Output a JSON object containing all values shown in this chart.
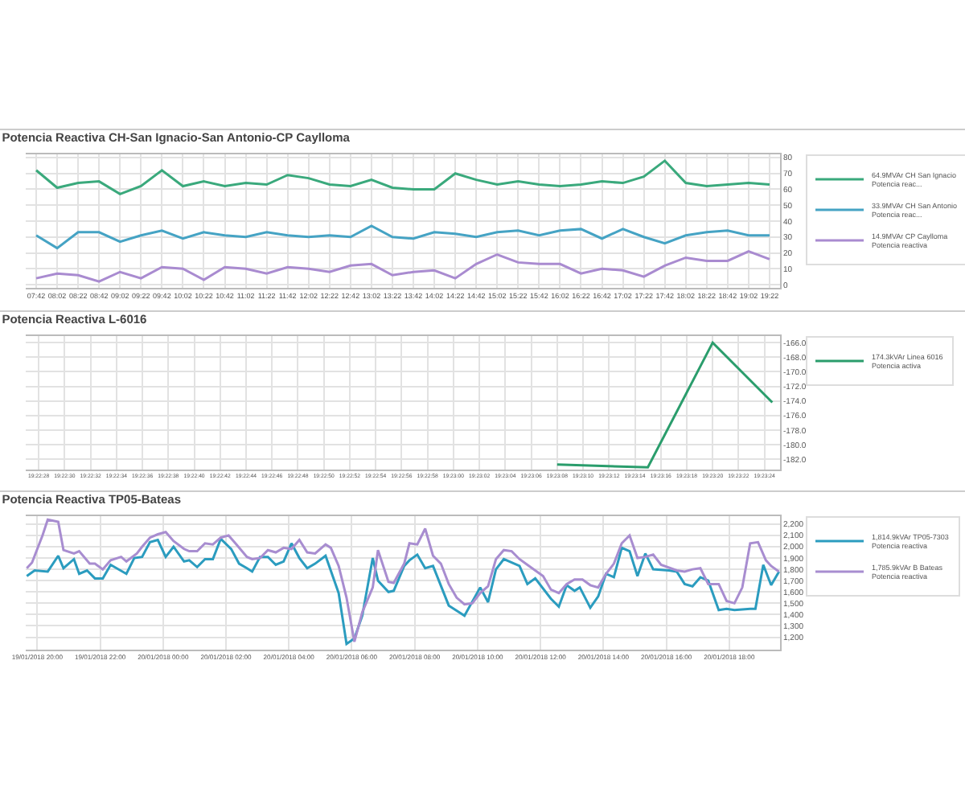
{
  "chart_data": [
    {
      "type": "line",
      "title": "Potencia Reactiva CH-San Ignacio-San Antonio-CP Caylloma",
      "categories": [
        "07:42",
        "08:02",
        "08:22",
        "08:42",
        "09:02",
        "09:22",
        "09:42",
        "10:02",
        "10:22",
        "10:42",
        "11:02",
        "11:22",
        "11:42",
        "12:02",
        "12:22",
        "12:42",
        "13:02",
        "13:22",
        "13:42",
        "14:02",
        "14:22",
        "14:42",
        "15:02",
        "15:22",
        "15:42",
        "16:02",
        "16:22",
        "16:42",
        "17:02",
        "17:22",
        "17:42",
        "18:02",
        "18:22",
        "18:42",
        "19:02",
        "19:22"
      ],
      "series": [
        {
          "name": "64.9MVAr CH San Ignacio Potencia reac...",
          "color": "#3aa97c",
          "values": [
            72,
            61,
            64,
            65,
            57,
            62,
            72,
            62,
            65,
            62,
            64,
            63,
            69,
            67,
            63,
            62,
            66,
            61,
            60,
            60,
            70,
            66,
            63,
            65,
            63,
            62,
            63,
            65,
            64,
            68,
            78,
            64,
            62,
            63,
            64,
            63
          ]
        },
        {
          "name": "33.9MVAr CH San Antonio Potencia reac...",
          "color": "#45a3c4",
          "values": [
            31,
            23,
            33,
            33,
            27,
            31,
            34,
            29,
            33,
            31,
            30,
            33,
            31,
            30,
            31,
            30,
            37,
            30,
            29,
            33,
            32,
            30,
            33,
            34,
            31,
            34,
            35,
            29,
            35,
            30,
            26,
            31,
            33,
            34,
            31,
            31
          ]
        },
        {
          "name": "14.9MVAr CP Caylloma Potencia reactiva",
          "color": "#a98bd0",
          "values": [
            4,
            7,
            6,
            2,
            8,
            4,
            11,
            10,
            3,
            11,
            10,
            7,
            11,
            10,
            8,
            12,
            13,
            6,
            8,
            9,
            4,
            13,
            19,
            14,
            13,
            13,
            7,
            10,
            9,
            5,
            12,
            17,
            15,
            15,
            21,
            16
          ]
        }
      ],
      "ylim": [
        -2,
        82
      ],
      "yticks": [
        0,
        10,
        20,
        30,
        40,
        50,
        60,
        70,
        80
      ],
      "grid": true,
      "legend": "top right"
    },
    {
      "type": "line",
      "title": "Potencia Reactiva L-6016",
      "series": [
        {
          "name": "174.3kVAr Linea 6016 Potencia activa",
          "color": "#2a9d6c",
          "x": [
            19.385556,
            19.3875,
            19.388889,
            19.390167
          ],
          "values": [
            -182.7,
            -183.1,
            -166.0,
            -174.2
          ]
        }
      ],
      "xlim": [
        19.374167,
        19.390333
      ],
      "xticks": [
        {
          "value": 19.374444,
          "label": "19:22:28"
        },
        {
          "value": 19.375,
          "label": "19:22:30"
        },
        {
          "value": 19.375556,
          "label": "19:22:32"
        },
        {
          "value": 19.376111,
          "label": "19:22:34"
        },
        {
          "value": 19.376667,
          "label": "19:22:36"
        },
        {
          "value": 19.377222,
          "label": "19:22:38"
        },
        {
          "value": 19.377778,
          "label": "19:22:40"
        },
        {
          "value": 19.378333,
          "label": "19:22:42"
        },
        {
          "value": 19.378889,
          "label": "19:22:44"
        },
        {
          "value": 19.379444,
          "label": "19:22:46"
        },
        {
          "value": 19.38,
          "label": "19:22:48"
        },
        {
          "value": 19.380556,
          "label": "19:22:50"
        },
        {
          "value": 19.381111,
          "label": "19:22:52"
        },
        {
          "value": 19.381667,
          "label": "19:22:54"
        },
        {
          "value": 19.382222,
          "label": "19:22:56"
        },
        {
          "value": 19.382778,
          "label": "19:22:58"
        },
        {
          "value": 19.383333,
          "label": "19:23:00"
        },
        {
          "value": 19.383889,
          "label": "19:23:02"
        },
        {
          "value": 19.384444,
          "label": "19:23:04"
        },
        {
          "value": 19.385,
          "label": "19:23:06"
        },
        {
          "value": 19.385556,
          "label": "19:23:08"
        },
        {
          "value": 19.386111,
          "label": "19:23:10"
        },
        {
          "value": 19.386667,
          "label": "19:23:12"
        },
        {
          "value": 19.387222,
          "label": "19:23:14"
        },
        {
          "value": 19.387778,
          "label": "19:23:16"
        },
        {
          "value": 19.388333,
          "label": "19:23:18"
        },
        {
          "value": 19.388889,
          "label": "19:23:20"
        },
        {
          "value": 19.389444,
          "label": "19:23:22"
        },
        {
          "value": 19.39,
          "label": "19:23:24"
        }
      ],
      "ylim": [
        -183.4,
        -165.1
      ],
      "yticks": [
        {
          "value": -182,
          "label": "-182.0"
        },
        {
          "value": -180,
          "label": "-180.0"
        },
        {
          "value": -178,
          "label": "-178.0"
        },
        {
          "value": -176,
          "label": "-176.0"
        },
        {
          "value": -174,
          "label": "-174.0"
        },
        {
          "value": -172,
          "label": "-172.0"
        },
        {
          "value": -170,
          "label": "-170.0"
        },
        {
          "value": -168,
          "label": "-168.0"
        },
        {
          "value": -166,
          "label": "-166.0"
        }
      ],
      "grid": true,
      "legend": "top right"
    },
    {
      "type": "line",
      "title": "Potencia Reactiva TP05-Bateas",
      "series": [
        {
          "name": "1,814.9kVAr TP05-7303 Potencia reactiva",
          "color": "#2b9cbf",
          "x": [
            "2018-01-19T19:40",
            "2018-01-19T19:55",
            "2018-01-19T20:20",
            "2018-01-19T20:40",
            "2018-01-19T20:50",
            "2018-01-19T21:10",
            "2018-01-19T21:20",
            "2018-01-19T21:35",
            "2018-01-19T21:50",
            "2018-01-19T22:05",
            "2018-01-19T22:20",
            "2018-01-19T22:50",
            "2018-01-19T23:05",
            "2018-01-19T23:20",
            "2018-01-19T23:35",
            "2018-01-19T23:50",
            "2018-01-20T00:05",
            "2018-01-20T00:20",
            "2018-01-20T00:40",
            "2018-01-20T00:50",
            "2018-01-20T01:05",
            "2018-01-20T01:20",
            "2018-01-20T01:35",
            "2018-01-20T01:50",
            "2018-01-20T02:10",
            "2018-01-20T02:25",
            "2018-01-20T02:40",
            "2018-01-20T02:50",
            "2018-01-20T03:05",
            "2018-01-20T03:20",
            "2018-01-20T03:35",
            "2018-01-20T03:50",
            "2018-01-20T04:05",
            "2018-01-20T04:20",
            "2018-01-20T04:35",
            "2018-01-20T04:50",
            "2018-01-20T05:10",
            "2018-01-20T05:35",
            "2018-01-20T05:50",
            "2018-01-20T06:05",
            "2018-01-20T06:20",
            "2018-01-20T06:40",
            "2018-01-20T06:50",
            "2018-01-20T07:10",
            "2018-01-20T07:20",
            "2018-01-20T07:40",
            "2018-01-20T07:50",
            "2018-01-20T08:05",
            "2018-01-20T08:20",
            "2018-01-20T08:35",
            "2018-01-20T09:05",
            "2018-01-20T09:35",
            "2018-01-20T10:05",
            "2018-01-20T10:20",
            "2018-01-20T10:35",
            "2018-01-20T10:50",
            "2018-01-20T11:20",
            "2018-01-20T11:35",
            "2018-01-20T11:50",
            "2018-01-20T12:20",
            "2018-01-20T12:35",
            "2018-01-20T12:50",
            "2018-01-20T13:05",
            "2018-01-20T13:15",
            "2018-01-20T13:35",
            "2018-01-20T13:50",
            "2018-01-20T14:05",
            "2018-01-20T14:20",
            "2018-01-20T14:35",
            "2018-01-20T14:50",
            "2018-01-20T15:05",
            "2018-01-20T15:20",
            "2018-01-20T15:35",
            "2018-01-20T16:05",
            "2018-01-20T16:20",
            "2018-01-20T16:35",
            "2018-01-20T16:50",
            "2018-01-20T17:05",
            "2018-01-20T17:20",
            "2018-01-20T17:40",
            "2018-01-20T17:55",
            "2018-01-20T18:10",
            "2018-01-20T18:40",
            "2018-01-20T18:50",
            "2018-01-20T19:05",
            "2018-01-20T19:20",
            "2018-01-20T19:35"
          ],
          "values": [
            1740,
            1790,
            1780,
            1920,
            1810,
            1890,
            1760,
            1790,
            1720,
            1720,
            1840,
            1760,
            1900,
            1910,
            2040,
            2060,
            1910,
            2000,
            1870,
            1880,
            1820,
            1890,
            1890,
            2070,
            1980,
            1850,
            1810,
            1780,
            1910,
            1910,
            1840,
            1870,
            2030,
            1900,
            1810,
            1850,
            1920,
            1590,
            1140,
            1190,
            1390,
            1900,
            1700,
            1600,
            1610,
            1830,
            1880,
            1930,
            1810,
            1830,
            1480,
            1390,
            1640,
            1510,
            1800,
            1890,
            1830,
            1670,
            1720,
            1540,
            1470,
            1660,
            1610,
            1640,
            1460,
            1560,
            1760,
            1730,
            1990,
            1960,
            1740,
            1940,
            1800,
            1790,
            1780,
            1670,
            1650,
            1730,
            1700,
            1440,
            1450,
            1440,
            1450,
            1450,
            1840,
            1660,
            1780
          ]
        },
        {
          "name": "1,785.9kVAr B Bateas Potencia reactiva",
          "color": "#a88dd0",
          "x": [
            "2018-01-19T19:40",
            "2018-01-19T19:50",
            "2018-01-19T20:10",
            "2018-01-19T20:20",
            "2018-01-19T20:40",
            "2018-01-19T20:50",
            "2018-01-19T21:10",
            "2018-01-19T21:20",
            "2018-01-19T21:40",
            "2018-01-19T21:50",
            "2018-01-19T22:05",
            "2018-01-19T22:20",
            "2018-01-19T22:40",
            "2018-01-19T22:50",
            "2018-01-19T23:10",
            "2018-01-19T23:20",
            "2018-01-19T23:35",
            "2018-01-19T23:50",
            "2018-01-20T00:05",
            "2018-01-20T00:20",
            "2018-01-20T00:40",
            "2018-01-20T00:50",
            "2018-01-20T01:05",
            "2018-01-20T01:20",
            "2018-01-20T01:35",
            "2018-01-20T01:50",
            "2018-01-20T02:05",
            "2018-01-20T02:20",
            "2018-01-20T02:40",
            "2018-01-20T02:50",
            "2018-01-20T03:05",
            "2018-01-20T03:20",
            "2018-01-20T03:35",
            "2018-01-20T03:50",
            "2018-01-20T04:05",
            "2018-01-20T04:20",
            "2018-01-20T04:35",
            "2018-01-20T04:50",
            "2018-01-20T05:10",
            "2018-01-20T05:20",
            "2018-01-20T05:35",
            "2018-01-20T05:50",
            "2018-01-20T06:05",
            "2018-01-20T06:20",
            "2018-01-20T06:40",
            "2018-01-20T06:50",
            "2018-01-20T07:10",
            "2018-01-20T07:20",
            "2018-01-20T07:40",
            "2018-01-20T07:50",
            "2018-01-20T08:05",
            "2018-01-20T08:20",
            "2018-01-20T08:35",
            "2018-01-20T08:50",
            "2018-01-20T09:05",
            "2018-01-20T09:20",
            "2018-01-20T09:35",
            "2018-01-20T09:50",
            "2018-01-20T10:05",
            "2018-01-20T10:20",
            "2018-01-20T10:35",
            "2018-01-20T10:50",
            "2018-01-20T11:05",
            "2018-01-20T11:20",
            "2018-01-20T11:35",
            "2018-01-20T12:05",
            "2018-01-20T12:20",
            "2018-01-20T12:35",
            "2018-01-20T12:50",
            "2018-01-20T13:05",
            "2018-01-20T13:20",
            "2018-01-20T13:35",
            "2018-01-20T13:50",
            "2018-01-20T14:05",
            "2018-01-20T14:20",
            "2018-01-20T14:35",
            "2018-01-20T14:50",
            "2018-01-20T15:05",
            "2018-01-20T15:20",
            "2018-01-20T15:35",
            "2018-01-20T15:50",
            "2018-01-20T16:20",
            "2018-01-20T16:35",
            "2018-01-20T16:50",
            "2018-01-20T17:05",
            "2018-01-20T17:20",
            "2018-01-20T17:40",
            "2018-01-20T17:55",
            "2018-01-20T18:10",
            "2018-01-20T18:25",
            "2018-01-20T18:40",
            "2018-01-20T18:55",
            "2018-01-20T19:10",
            "2018-01-20T19:20",
            "2018-01-20T19:35"
          ],
          "values": [
            1810,
            1860,
            2100,
            2240,
            2220,
            1970,
            1940,
            1960,
            1850,
            1850,
            1800,
            1880,
            1910,
            1870,
            1940,
            2000,
            2080,
            2110,
            2130,
            2050,
            1980,
            1960,
            1960,
            2030,
            2020,
            2080,
            2100,
            2020,
            1910,
            1890,
            1900,
            1970,
            1950,
            1990,
            1980,
            2060,
            1950,
            1940,
            2020,
            1990,
            1830,
            1550,
            1160,
            1420,
            1640,
            1970,
            1690,
            1680,
            1850,
            2030,
            2020,
            2160,
            1920,
            1850,
            1670,
            1550,
            1490,
            1500,
            1590,
            1650,
            1890,
            1970,
            1960,
            1890,
            1840,
            1740,
            1620,
            1590,
            1670,
            1710,
            1710,
            1660,
            1640,
            1760,
            1850,
            2030,
            2100,
            1900,
            1910,
            1930,
            1840,
            1790,
            1780,
            1800,
            1810,
            1670,
            1670,
            1520,
            1500,
            1640,
            2030,
            2040,
            1880,
            1830,
            1780
          ]
        }
      ],
      "xlim": [
        "2018-01-19T19:38",
        "2018-01-20T19:37"
      ],
      "xticks": [
        {
          "value": "2018-01-19T20:00",
          "label": "19/01/2018 20:00"
        },
        {
          "value": "2018-01-19T22:00",
          "label": "19/01/2018 22:00"
        },
        {
          "value": "2018-01-20T00:00",
          "label": "20/01/2018 00:00"
        },
        {
          "value": "2018-01-20T02:00",
          "label": "20/01/2018 02:00"
        },
        {
          "value": "2018-01-20T04:00",
          "label": "20/01/2018 04:00"
        },
        {
          "value": "2018-01-20T06:00",
          "label": "20/01/2018 06:00"
        },
        {
          "value": "2018-01-20T08:00",
          "label": "20/01/2018 08:00"
        },
        {
          "value": "2018-01-20T10:00",
          "label": "20/01/2018 10:00"
        },
        {
          "value": "2018-01-20T12:00",
          "label": "20/01/2018 12:00"
        },
        {
          "value": "2018-01-20T14:00",
          "label": "20/01/2018 14:00"
        },
        {
          "value": "2018-01-20T16:00",
          "label": "20/01/2018 16:00"
        },
        {
          "value": "2018-01-20T18:00",
          "label": "20/01/2018 18:00"
        }
      ],
      "ylim": [
        1090,
        2270
      ],
      "yticks": [
        {
          "value": 1200,
          "label": "1,200"
        },
        {
          "value": 1300,
          "label": "1,300"
        },
        {
          "value": 1400,
          "label": "1,400"
        },
        {
          "value": 1500,
          "label": "1,500"
        },
        {
          "value": 1600,
          "label": "1,600"
        },
        {
          "value": 1700,
          "label": "1,700"
        },
        {
          "value": 1800,
          "label": "1,800"
        },
        {
          "value": 1900,
          "label": "1,900"
        },
        {
          "value": 2000,
          "label": "2,000"
        },
        {
          "value": 2100,
          "label": "2,100"
        },
        {
          "value": 2200,
          "label": "2,200"
        }
      ],
      "grid": true,
      "legend": "top right"
    }
  ]
}
